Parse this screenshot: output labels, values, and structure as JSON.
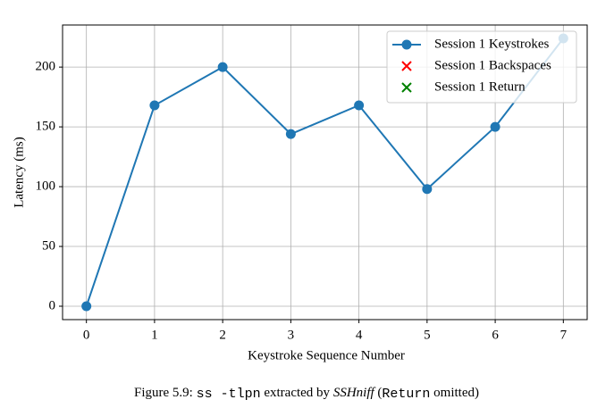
{
  "chart_data": {
    "type": "line",
    "x": [
      0,
      1,
      2,
      3,
      4,
      5,
      6,
      7
    ],
    "series": [
      {
        "name": "Session 1 Keystrokes",
        "color": "#1f77b4",
        "marker": "o",
        "values": [
          0,
          168,
          200,
          144,
          168,
          98,
          150,
          224
        ]
      },
      {
        "name": "Session 1 Backspaces",
        "color": "#ff0000",
        "marker": "x",
        "values": [
          null,
          null,
          null,
          null,
          null,
          null,
          null,
          null
        ]
      },
      {
        "name": "Session 1 Return",
        "color": "#008000",
        "marker": "x",
        "values": [
          null,
          null,
          null,
          null,
          null,
          null,
          null,
          null
        ]
      }
    ],
    "xlabel": "Keystroke Sequence Number",
    "ylabel": "Latency (ms)",
    "xlim": [
      -0.35,
      7.35
    ],
    "xticks": [
      0,
      1,
      2,
      3,
      4,
      5,
      6,
      7
    ],
    "ylim": [
      -11.2,
      235.2
    ],
    "yticks": [
      0,
      50,
      100,
      150,
      200
    ],
    "grid": true,
    "legend": "upper right"
  },
  "caption": [
    "Figure 5.9: ",
    "ss -tlpn",
    " extracted by ",
    "SSHniff",
    " (",
    "Return",
    " omitted)"
  ]
}
